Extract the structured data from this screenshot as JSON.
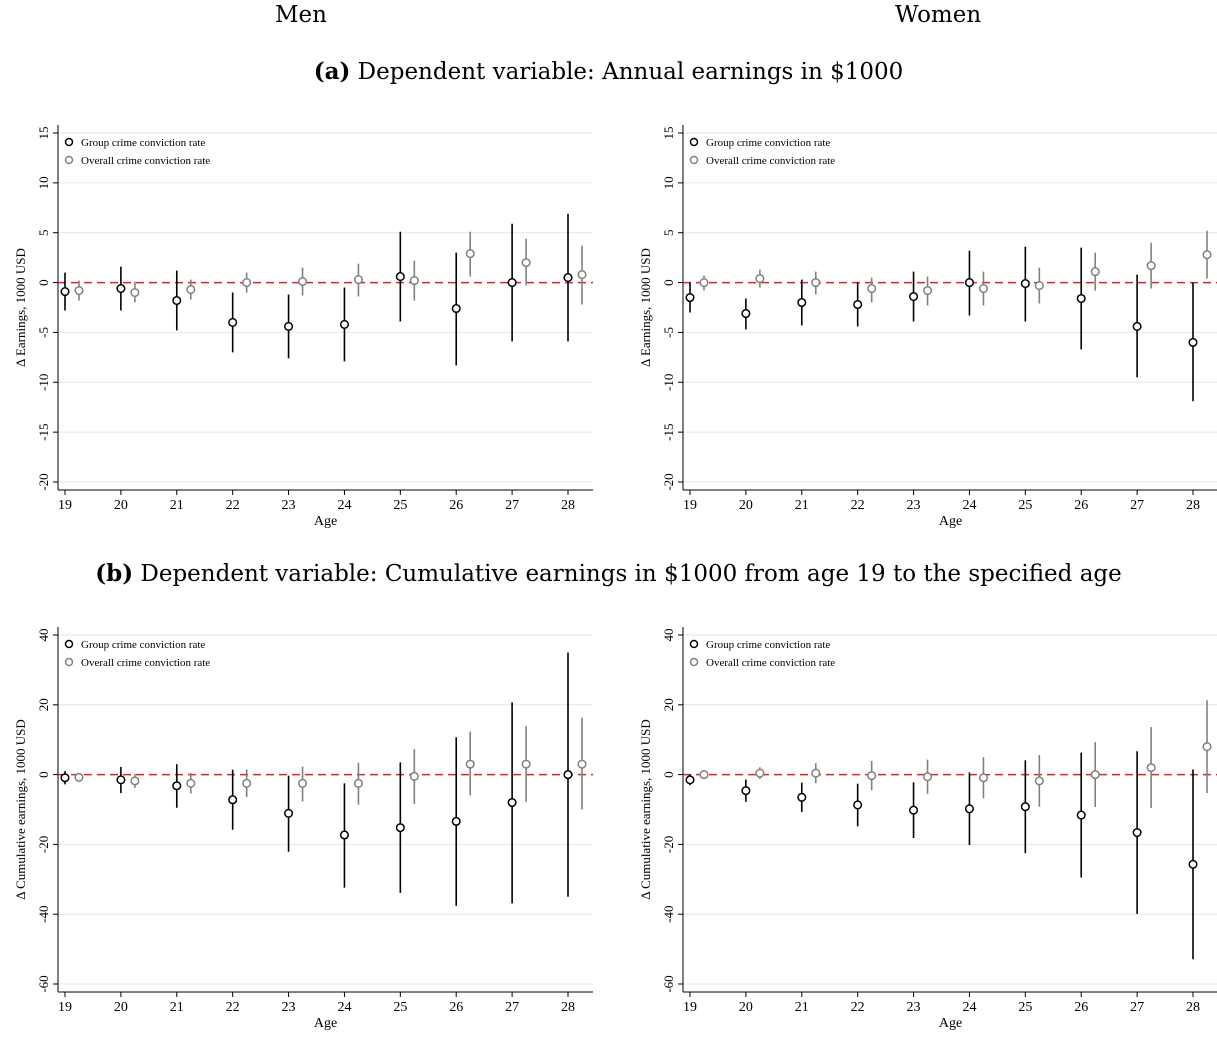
{
  "headers": {
    "left": "Men",
    "right": "Women"
  },
  "subtitles": {
    "a": {
      "tag": "(a)",
      "text": "Dependent variable: Annual earnings in $1000"
    },
    "b": {
      "tag": "(b)",
      "text": "Dependent variable: Cumulative earnings in $1000 from age 19 to the specified age"
    }
  },
  "legend": [
    "Group crime conviction rate",
    "Overall crime conviction rate"
  ],
  "colors": {
    "group": "#000000",
    "overall": "#808080",
    "refline": "#d62728",
    "grid": "#e6e6e6"
  },
  "chart_data": [
    {
      "type": "scatter",
      "panel": "Men (a)",
      "xlabel": "Age",
      "ylabel": "Δ Earnings, 1000 USD",
      "x": [
        19,
        20,
        21,
        22,
        23,
        24,
        25,
        26,
        27,
        28
      ],
      "ylim": [
        -20,
        15
      ],
      "yticks": [
        -20,
        -15,
        -10,
        -5,
        0,
        5,
        10,
        15
      ],
      "reference_line": 0,
      "series": [
        {
          "name": "Group crime conviction rate",
          "values": [
            -0.9,
            -0.6,
            -1.8,
            -4.0,
            -4.4,
            -4.2,
            0.6,
            -2.6,
            0.0,
            0.5
          ],
          "ci_low": [
            -2.8,
            -2.8,
            -4.8,
            -7.0,
            -7.6,
            -7.9,
            -3.9,
            -8.3,
            -5.9,
            -5.9
          ],
          "ci_high": [
            1.0,
            1.6,
            1.2,
            -1.0,
            -1.2,
            -0.5,
            5.1,
            3.0,
            5.9,
            6.9
          ]
        },
        {
          "name": "Overall crime conviction rate",
          "values": [
            -0.8,
            -1.0,
            -0.7,
            0.0,
            0.1,
            0.3,
            0.2,
            2.9,
            2.0,
            0.8
          ],
          "ci_low": [
            -1.8,
            -2.0,
            -1.7,
            -1.0,
            -1.3,
            -1.4,
            -1.8,
            0.6,
            -0.3,
            -2.2
          ],
          "ci_high": [
            0.2,
            0.1,
            0.3,
            1.0,
            1.5,
            1.9,
            2.2,
            5.1,
            4.4,
            3.7
          ]
        }
      ]
    },
    {
      "type": "scatter",
      "panel": "Women (a)",
      "xlabel": "Age",
      "ylabel": "Δ Earnings, 1000 USD",
      "x": [
        19,
        20,
        21,
        22,
        23,
        24,
        25,
        26,
        27,
        28
      ],
      "ylim": [
        -20,
        15
      ],
      "yticks": [
        -20,
        -15,
        -10,
        -5,
        0,
        5,
        10,
        15
      ],
      "reference_line": 0,
      "series": [
        {
          "name": "Group crime conviction rate",
          "values": [
            -1.5,
            -3.1,
            -2.0,
            -2.2,
            -1.4,
            0.0,
            -0.1,
            -1.6,
            -4.4,
            -6.0
          ],
          "ci_low": [
            -3.0,
            -4.7,
            -4.3,
            -4.4,
            -3.9,
            -3.3,
            -3.9,
            -6.7,
            -9.5,
            -11.9
          ],
          "ci_high": [
            0.0,
            -1.6,
            0.3,
            0.0,
            1.1,
            3.2,
            3.6,
            3.5,
            0.8,
            0.0
          ]
        },
        {
          "name": "Overall crime conviction rate",
          "values": [
            0.0,
            0.4,
            0.0,
            -0.6,
            -0.8,
            -0.6,
            -0.3,
            1.1,
            1.7,
            2.8
          ],
          "ci_low": [
            -0.8,
            -0.5,
            -1.2,
            -2.0,
            -2.3,
            -2.3,
            -2.1,
            -0.8,
            -0.6,
            0.4
          ],
          "ci_high": [
            0.7,
            1.3,
            1.1,
            0.5,
            0.6,
            1.1,
            1.5,
            3.0,
            4.0,
            5.2
          ]
        }
      ]
    },
    {
      "type": "scatter",
      "panel": "Men (b)",
      "xlabel": "Age",
      "ylabel": "Δ Cumulative earnings, 1000 USD",
      "x": [
        19,
        20,
        21,
        22,
        23,
        24,
        25,
        26,
        27,
        28
      ],
      "ylim": [
        -60,
        40
      ],
      "yticks": [
        -60,
        -40,
        -20,
        0,
        20,
        40
      ],
      "reference_line": 0,
      "series": [
        {
          "name": "Group crime conviction rate",
          "values": [
            -0.9,
            -1.5,
            -3.2,
            -7.2,
            -11.1,
            -17.3,
            -15.2,
            -13.4,
            -8.0,
            0.0
          ],
          "ci_low": [
            -2.8,
            -5.3,
            -9.5,
            -15.8,
            -22.1,
            -32.4,
            -33.9,
            -37.6,
            -36.9,
            -35.0
          ],
          "ci_high": [
            1.0,
            2.2,
            3.0,
            1.4,
            -0.3,
            -2.5,
            3.5,
            10.7,
            20.7,
            35.0
          ]
        },
        {
          "name": "Overall crime conviction rate",
          "values": [
            -0.8,
            -1.8,
            -2.5,
            -2.5,
            -2.5,
            -2.5,
            -0.5,
            3.0,
            3.0,
            3.0
          ],
          "ci_low": [
            -1.8,
            -3.8,
            -5.4,
            -6.4,
            -7.7,
            -8.6,
            -8.4,
            -6.0,
            -7.8,
            -10.0
          ],
          "ci_high": [
            0.2,
            0.2,
            0.5,
            1.5,
            2.3,
            3.4,
            7.3,
            12.3,
            13.9,
            16.3
          ]
        }
      ]
    },
    {
      "type": "scatter",
      "panel": "Women (b)",
      "xlabel": "Age",
      "ylabel": "Δ Cumulative earnings, 1000 USD",
      "x": [
        19,
        20,
        21,
        22,
        23,
        24,
        25,
        26,
        27,
        28
      ],
      "ylim": [
        -60,
        40
      ],
      "yticks": [
        -60,
        -40,
        -20,
        0,
        20,
        40
      ],
      "reference_line": 0,
      "series": [
        {
          "name": "Group crime conviction rate",
          "values": [
            -1.5,
            -4.6,
            -6.5,
            -8.7,
            -10.2,
            -9.8,
            -9.2,
            -11.6,
            -16.6,
            -25.7
          ],
          "ci_low": [
            -3.0,
            -7.8,
            -10.7,
            -14.8,
            -18.2,
            -20.2,
            -22.5,
            -29.5,
            -39.9,
            -52.9
          ],
          "ci_high": [
            0.0,
            -1.4,
            -2.3,
            -2.6,
            -2.2,
            0.6,
            4.1,
            6.3,
            6.7,
            1.5
          ]
        },
        {
          "name": "Overall crime conviction rate",
          "values": [
            0.0,
            0.4,
            0.4,
            -0.3,
            -0.6,
            -0.9,
            -1.8,
            0.0,
            2.0,
            8.0
          ],
          "ci_low": [
            -0.8,
            -1.3,
            -2.5,
            -4.5,
            -5.5,
            -6.8,
            -9.2,
            -9.3,
            -9.6,
            -5.3
          ],
          "ci_high": [
            0.7,
            2.1,
            3.3,
            3.9,
            4.3,
            5.0,
            5.6,
            9.3,
            13.6,
            21.3
          ]
        }
      ]
    }
  ]
}
